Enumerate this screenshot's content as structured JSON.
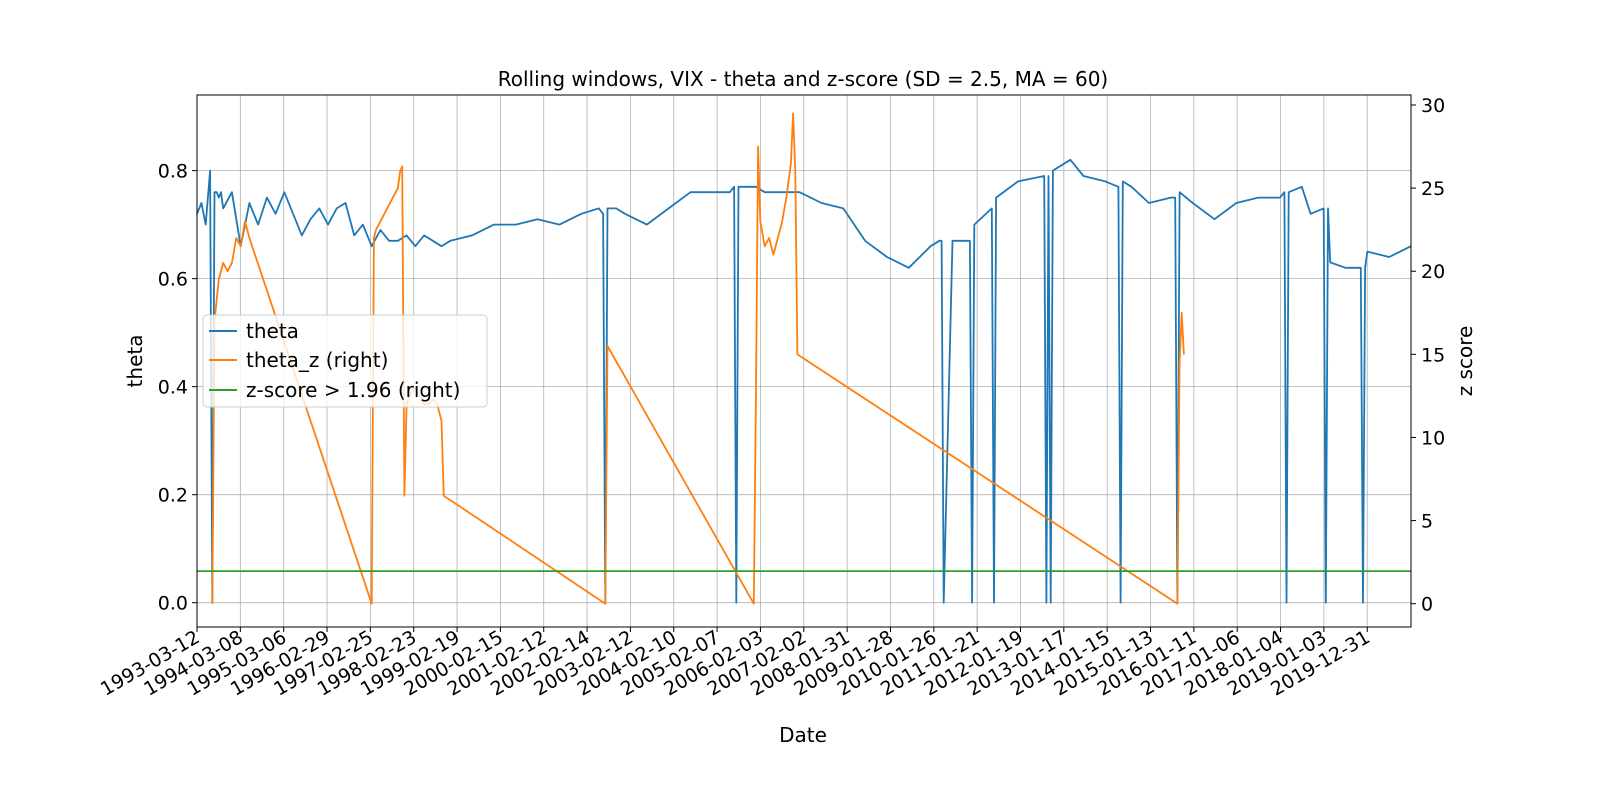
{
  "chart_data": {
    "type": "line",
    "title": "Rolling windows, VIX - theta and z-score (SD = 2.5, MA = 60)",
    "xlabel": "Date",
    "ylabel_left": "theta",
    "ylabel_right": "z score",
    "grid": true,
    "legend_placement": "center-left",
    "x_ticks": [
      "1993-03-12",
      "1994-03-08",
      "1995-03-06",
      "1996-02-29",
      "1997-02-25",
      "1998-02-23",
      "1999-02-19",
      "2000-02-15",
      "2001-02-12",
      "2002-02-14",
      "2003-02-12",
      "2004-02-10",
      "2005-02-07",
      "2006-02-03",
      "2007-02-02",
      "2008-01-31",
      "2009-01-28",
      "2010-01-26",
      "2011-01-21",
      "2012-01-19",
      "2013-01-17",
      "2014-01-15",
      "2015-01-13",
      "2016-01-11",
      "2017-01-06",
      "2018-01-04",
      "2019-01-03",
      "2019-12-31"
    ],
    "x_range": [
      1993.2,
      2021.0
    ],
    "y_left_ticks": [
      "0.0",
      "0.2",
      "0.4",
      "0.6",
      "0.8"
    ],
    "y_left_range": [
      -0.045,
      0.94
    ],
    "y_right_ticks": [
      "0",
      "5",
      "10",
      "15",
      "20",
      "25",
      "30"
    ],
    "y_right_range": [
      -1.4,
      30.6
    ],
    "series": [
      {
        "name": "theta",
        "axis": "left",
        "color": "#1f77b4",
        "x": [
          1993.2,
          1993.3,
          1993.4,
          1993.5,
          1993.55,
          1993.6,
          1993.65,
          1993.7,
          1993.75,
          1993.8,
          1994.0,
          1994.2,
          1994.4,
          1994.6,
          1994.8,
          1995.0,
          1995.2,
          1995.4,
          1995.6,
          1995.8,
          1996.0,
          1996.2,
          1996.4,
          1996.6,
          1996.8,
          1997.0,
          1997.2,
          1997.4,
          1997.6,
          1997.8,
          1998.0,
          1998.2,
          1998.4,
          1998.6,
          1998.8,
          1999.0,
          1999.5,
          2000.0,
          2000.5,
          2001.0,
          2001.5,
          2002.0,
          2002.4,
          2002.5,
          2002.55,
          2002.6,
          2002.8,
          2003.0,
          2003.5,
          2004.0,
          2004.5,
          2005.0,
          2005.4,
          2005.5,
          2005.55,
          2005.6,
          2006.0,
          2006.2,
          2006.5,
          2007.0,
          2007.5,
          2008.0,
          2008.5,
          2009.0,
          2009.5,
          2010.0,
          2010.2,
          2010.25,
          2010.3,
          2010.5,
          2010.9,
          2010.95,
          2011.0,
          2011.4,
          2011.45,
          2011.5,
          2012.0,
          2012.6,
          2012.65,
          2012.7,
          2012.75,
          2012.8,
          2013.0,
          2013.2,
          2013.5,
          2014.0,
          2014.3,
          2014.35,
          2014.4,
          2014.6,
          2015.0,
          2015.5,
          2015.6,
          2015.65,
          2015.7,
          2016.0,
          2016.5,
          2017.0,
          2017.5,
          2018.0,
          2018.1,
          2018.15,
          2018.2,
          2018.5,
          2018.7,
          2019.0,
          2019.05,
          2019.1,
          2019.15,
          2019.5,
          2019.85,
          2019.9,
          2019.95,
          2020.0,
          2020.5,
          2021.0
        ],
        "y": [
          0.72,
          0.74,
          0.7,
          0.8,
          0.0,
          0.76,
          0.76,
          0.75,
          0.76,
          0.73,
          0.76,
          0.66,
          0.74,
          0.7,
          0.75,
          0.72,
          0.76,
          0.72,
          0.68,
          0.71,
          0.73,
          0.7,
          0.73,
          0.74,
          0.68,
          0.7,
          0.66,
          0.69,
          0.67,
          0.67,
          0.68,
          0.66,
          0.68,
          0.67,
          0.66,
          0.67,
          0.68,
          0.7,
          0.7,
          0.71,
          0.7,
          0.72,
          0.73,
          0.72,
          0.0,
          0.73,
          0.73,
          0.72,
          0.7,
          0.73,
          0.76,
          0.76,
          0.76,
          0.77,
          0.0,
          0.77,
          0.77,
          0.76,
          0.76,
          0.76,
          0.74,
          0.73,
          0.67,
          0.64,
          0.62,
          0.66,
          0.67,
          0.67,
          0.0,
          0.67,
          0.67,
          0.0,
          0.7,
          0.73,
          0.0,
          0.75,
          0.78,
          0.79,
          0.0,
          0.79,
          0.0,
          0.8,
          0.81,
          0.82,
          0.79,
          0.78,
          0.77,
          0.0,
          0.78,
          0.77,
          0.74,
          0.75,
          0.75,
          0.0,
          0.76,
          0.74,
          0.71,
          0.74,
          0.75,
          0.75,
          0.76,
          0.0,
          0.76,
          0.77,
          0.72,
          0.73,
          0.0,
          0.73,
          0.63,
          0.62,
          0.62,
          0.0,
          0.62,
          0.65,
          0.64,
          0.66
        ]
      },
      {
        "name": "theta_z (right)",
        "axis": "right",
        "color": "#ff7f0e",
        "x": [
          1993.55,
          1993.6,
          1993.7,
          1993.8,
          1993.9,
          1994.0,
          1994.1,
          1994.2,
          1994.3,
          1994.4,
          1997.2,
          1997.25,
          1997.3,
          1997.4,
          1997.5,
          1997.6,
          1997.7,
          1997.8,
          1997.85,
          1997.9,
          1997.95,
          1998.0,
          1998.1,
          1998.2,
          1998.3,
          1998.4,
          1998.5,
          1998.6,
          1998.7,
          1998.8,
          1998.85,
          2002.55,
          2002.6,
          2005.95,
          2006.0,
          2006.05,
          2006.1,
          2006.2,
          2006.3,
          2006.4,
          2006.5,
          2006.6,
          2006.7,
          2006.8,
          2006.85,
          2006.9,
          2006.95,
          2015.65,
          2015.7,
          2015.75,
          2015.8
        ],
        "y": [
          0.0,
          17.0,
          19.5,
          20.5,
          20.0,
          20.5,
          22.0,
          21.5,
          23.0,
          22.0,
          0.0,
          22.0,
          22.5,
          23.0,
          23.5,
          24.0,
          24.5,
          25.0,
          26.0,
          26.3,
          6.5,
          12.0,
          12.7,
          13.0,
          12.5,
          12.0,
          12.0,
          12.3,
          12.0,
          11.0,
          6.5,
          0.0,
          15.5,
          0.0,
          13.0,
          27.5,
          23.0,
          21.5,
          22.0,
          21.0,
          22.0,
          23.0,
          24.5,
          26.5,
          29.5,
          26.0,
          15.0,
          0.0,
          14.5,
          17.5,
          15.0
        ]
      },
      {
        "name": "z-score > 1.96 (right)",
        "axis": "right",
        "color": "#2ca02c",
        "x": [
          1993.2,
          2021.0
        ],
        "y": [
          1.96,
          1.96
        ]
      }
    ]
  }
}
